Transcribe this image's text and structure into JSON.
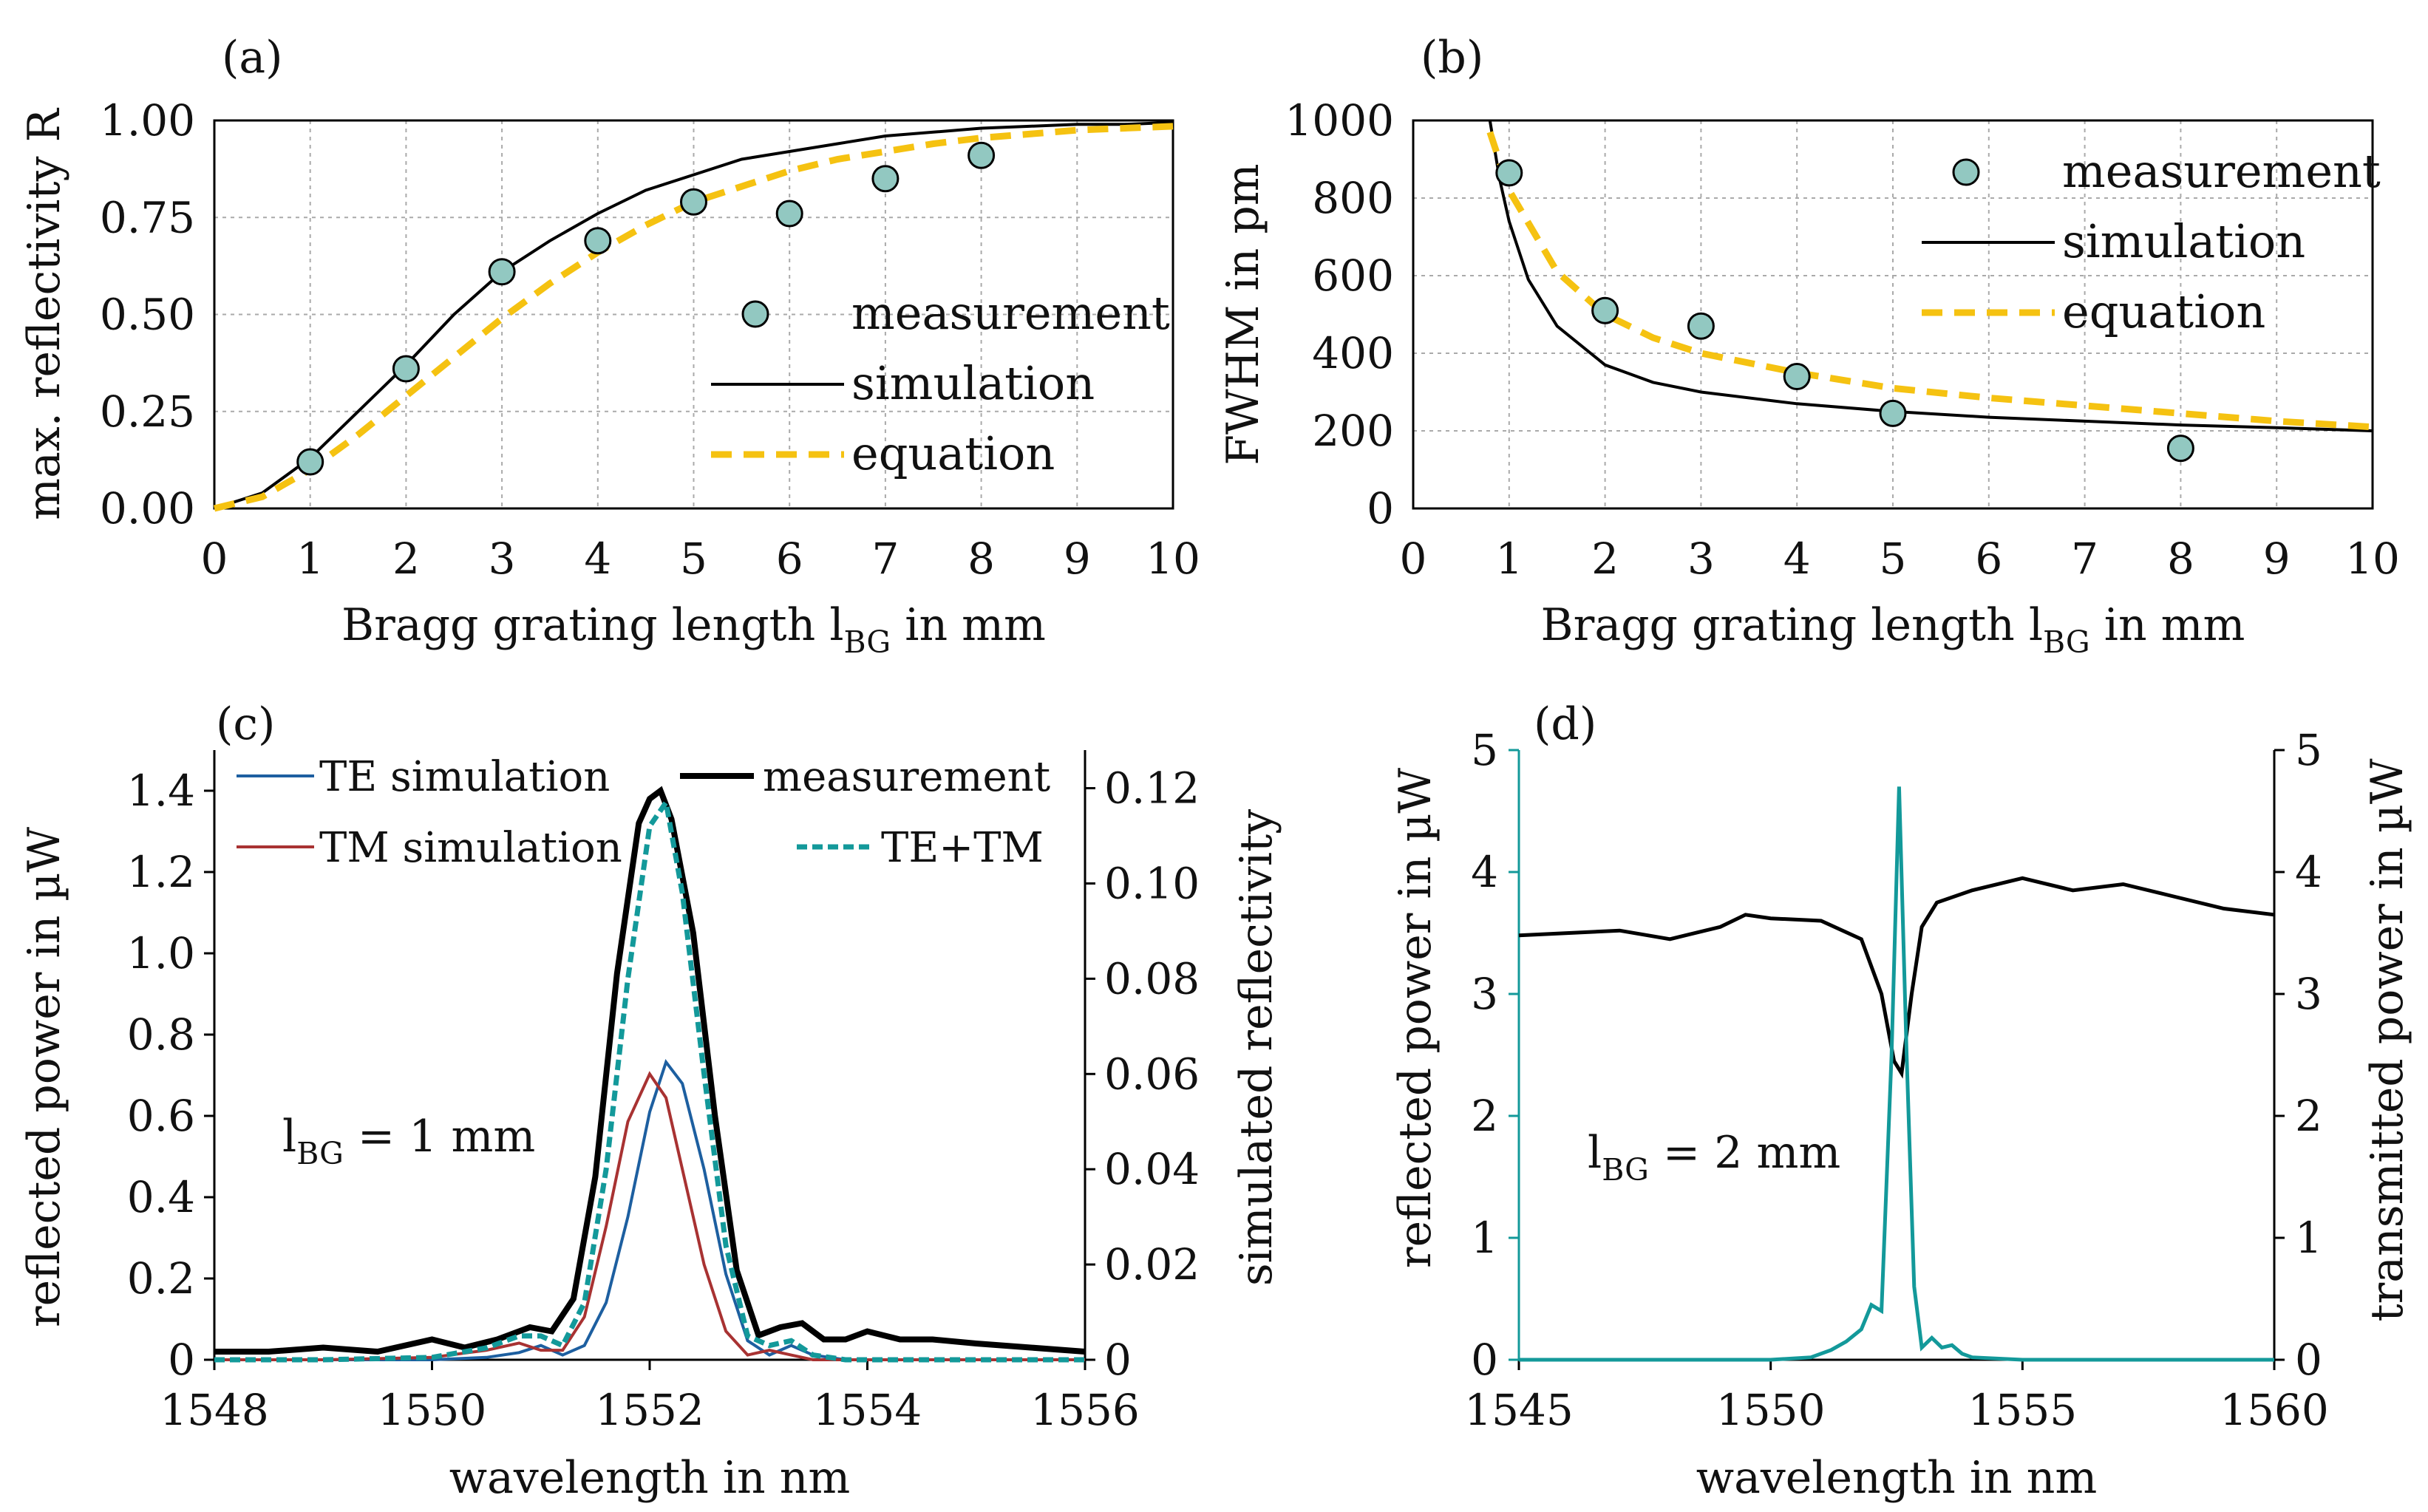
{
  "colors": {
    "measurement_fill": "#92c8c1",
    "simulation": "#000000",
    "equation": "#f5c211",
    "te": "#1d5fa0",
    "tm": "#a83232",
    "tetm": "#13999a",
    "grid": "#aaaaaa"
  },
  "chart_data": [
    {
      "panel": "(a)",
      "type": "scatter",
      "xlabel_main": "Bragg grating length l",
      "xlabel_sub": "BG",
      "xlabel_tail": " in mm",
      "ylabel": "max. reflectivity R",
      "xlim": [
        0,
        10
      ],
      "ylim": [
        0,
        1
      ],
      "xticks": [
        "0",
        "1",
        "2",
        "3",
        "4",
        "5",
        "6",
        "7",
        "8",
        "9",
        "10"
      ],
      "yticks": [
        "0.00",
        "0.25",
        "0.50",
        "0.75",
        "1.00"
      ],
      "grid": true,
      "legend_position": "lower-right",
      "series": [
        {
          "name": "measurement",
          "kind": "marker",
          "x": [
            1,
            2,
            3,
            4,
            5,
            6,
            7,
            8
          ],
          "y": [
            0.12,
            0.36,
            0.61,
            0.69,
            0.79,
            0.76,
            0.85,
            0.91
          ]
        },
        {
          "name": "simulation",
          "kind": "solid",
          "x": [
            0,
            0.5,
            1,
            1.5,
            2,
            2.5,
            3,
            3.5,
            4,
            4.5,
            5,
            5.5,
            6,
            6.5,
            7,
            7.5,
            8,
            8.5,
            9,
            9.5,
            10
          ],
          "y": [
            0,
            0.04,
            0.13,
            0.25,
            0.37,
            0.5,
            0.61,
            0.69,
            0.76,
            0.82,
            0.86,
            0.9,
            0.92,
            0.94,
            0.96,
            0.97,
            0.98,
            0.985,
            0.99,
            0.99,
            0.995
          ]
        },
        {
          "name": "equation",
          "kind": "dashed",
          "x": [
            0,
            0.5,
            1,
            1.5,
            2,
            2.5,
            3,
            3.5,
            4,
            4.5,
            5,
            5.5,
            6,
            6.5,
            7,
            7.5,
            8,
            8.5,
            9,
            9.5,
            10
          ],
          "y": [
            0,
            0.03,
            0.1,
            0.19,
            0.29,
            0.39,
            0.49,
            0.58,
            0.66,
            0.73,
            0.79,
            0.83,
            0.87,
            0.9,
            0.92,
            0.94,
            0.955,
            0.965,
            0.975,
            0.98,
            0.985
          ]
        }
      ]
    },
    {
      "panel": "(b)",
      "type": "scatter",
      "xlabel_main": "Bragg grating length l",
      "xlabel_sub": "BG",
      "xlabel_tail": " in mm",
      "ylabel": "FWHM in pm",
      "xlim": [
        0,
        10
      ],
      "ylim": [
        0,
        1000
      ],
      "xticks": [
        "0",
        "1",
        "2",
        "3",
        "4",
        "5",
        "6",
        "7",
        "8",
        "9",
        "10"
      ],
      "yticks": [
        "0",
        "200",
        "400",
        "600",
        "800",
        "1000"
      ],
      "grid": true,
      "legend_position": "upper-right",
      "series": [
        {
          "name": "measurement",
          "kind": "marker",
          "x": [
            1,
            2,
            3,
            4,
            5,
            8
          ],
          "y": [
            865,
            510,
            470,
            340,
            245,
            155
          ]
        },
        {
          "name": "simulation",
          "kind": "solid",
          "x": [
            0.8,
            0.9,
            1,
            1.2,
            1.5,
            2,
            2.5,
            3,
            4,
            5,
            6,
            7,
            8,
            9,
            10
          ],
          "y": [
            1000,
            850,
            740,
            590,
            470,
            370,
            325,
            300,
            270,
            250,
            235,
            225,
            215,
            208,
            200
          ]
        },
        {
          "name": "equation",
          "kind": "dashed",
          "x": [
            0.8,
            1,
            1.5,
            2,
            2.5,
            3,
            4,
            5,
            6,
            7,
            8,
            9,
            10
          ],
          "y": [
            970,
            820,
            610,
            500,
            440,
            400,
            350,
            310,
            285,
            265,
            245,
            225,
            210
          ]
        }
      ]
    },
    {
      "panel": "(c)",
      "type": "line",
      "xlabel": "wavelength in nm",
      "ylabel_left": "reflected power in µW",
      "ylabel_right": "simulated reflectivity",
      "xlim": [
        1548,
        1556
      ],
      "ylim_left": [
        0,
        1.5
      ],
      "ylim_right": [
        0,
        0.128
      ],
      "xticks": [
        "1548",
        "1550",
        "1552",
        "1554",
        "1556"
      ],
      "yticks_left": [
        "0",
        "0.2",
        "0.4",
        "0.6",
        "0.8",
        "1.0",
        "1.2",
        "1.4"
      ],
      "yticks_right": [
        "0",
        "0.02",
        "0.04",
        "0.06",
        "0.08",
        "0.10",
        "0.12"
      ],
      "annotation_main": "l",
      "annotation_sub": "BG",
      "annotation_tail": " = 1 mm",
      "legend_position": "top",
      "series": [
        {
          "name": "TE simulation",
          "axis": "right",
          "x": [
            1548,
            1549,
            1550,
            1550.5,
            1550.8,
            1551,
            1551.2,
            1551.4,
            1551.6,
            1551.8,
            1552,
            1552.15,
            1552.3,
            1552.5,
            1552.7,
            1552.9,
            1553.1,
            1553.3,
            1553.5,
            1553.8,
            1554.5,
            1556
          ],
          "y": [
            0,
            0,
            0,
            0.0005,
            0.0015,
            0.003,
            0.001,
            0.003,
            0.012,
            0.03,
            0.052,
            0.0625,
            0.058,
            0.04,
            0.018,
            0.004,
            0.001,
            0.003,
            0.001,
            0,
            0,
            0
          ]
        },
        {
          "name": "TM simulation",
          "axis": "right",
          "x": [
            1548,
            1549,
            1550,
            1550.5,
            1550.8,
            1551,
            1551.2,
            1551.4,
            1551.6,
            1551.8,
            1552,
            1552.15,
            1552.3,
            1552.5,
            1552.7,
            1552.9,
            1553.1,
            1553.3,
            1553.5,
            1553.8,
            1554.5,
            1556
          ],
          "y": [
            0,
            0,
            0.0005,
            0.002,
            0.0035,
            0.002,
            0.002,
            0.009,
            0.028,
            0.05,
            0.06,
            0.055,
            0.04,
            0.02,
            0.006,
            0.001,
            0.002,
            0.001,
            0,
            0,
            0,
            0
          ]
        },
        {
          "name": "TE+TM",
          "axis": "right",
          "x": [
            1548,
            1549,
            1550,
            1550.5,
            1550.8,
            1551,
            1551.2,
            1551.4,
            1551.6,
            1551.8,
            1552,
            1552.15,
            1552.3,
            1552.5,
            1552.7,
            1552.9,
            1553.1,
            1553.3,
            1553.5,
            1553.8,
            1554.5,
            1556
          ],
          "y": [
            0,
            0,
            0.0005,
            0.0025,
            0.005,
            0.005,
            0.003,
            0.012,
            0.04,
            0.08,
            0.112,
            0.117,
            0.098,
            0.06,
            0.024,
            0.005,
            0.003,
            0.004,
            0.001,
            0,
            0,
            0
          ]
        },
        {
          "name": "measurement",
          "axis": "left",
          "x": [
            1548,
            1548.5,
            1549,
            1549.5,
            1550,
            1550.3,
            1550.6,
            1550.9,
            1551.1,
            1551.3,
            1551.5,
            1551.7,
            1551.9,
            1552,
            1552.1,
            1552.2,
            1552.4,
            1552.6,
            1552.8,
            1553,
            1553.2,
            1553.4,
            1553.6,
            1553.8,
            1554,
            1554.3,
            1554.6,
            1555,
            1555.5,
            1556
          ],
          "y": [
            0.02,
            0.02,
            0.03,
            0.02,
            0.05,
            0.03,
            0.05,
            0.08,
            0.07,
            0.15,
            0.45,
            0.95,
            1.32,
            1.38,
            1.4,
            1.33,
            1.05,
            0.6,
            0.22,
            0.06,
            0.08,
            0.09,
            0.05,
            0.05,
            0.07,
            0.05,
            0.05,
            0.04,
            0.03,
            0.02
          ]
        }
      ]
    },
    {
      "panel": "(d)",
      "type": "line",
      "xlabel": "wavelength in nm",
      "ylabel_left": "reflected power in µW",
      "ylabel_right": "transmitted power in µW",
      "xlim": [
        1545,
        1560
      ],
      "ylim_left": [
        0,
        5
      ],
      "ylim_right": [
        0,
        5
      ],
      "xticks": [
        "1545",
        "1550",
        "1555",
        "1560"
      ],
      "yticks_left": [
        "0",
        "1",
        "2",
        "3",
        "4",
        "5"
      ],
      "yticks_right": [
        "0",
        "1",
        "2",
        "3",
        "4",
        "5"
      ],
      "annotation_main": "l",
      "annotation_sub": "BG",
      "annotation_tail": " = 2 mm",
      "series": [
        {
          "name": "reflected",
          "axis": "left",
          "x": [
            1545,
            1548,
            1550,
            1550.8,
            1551.2,
            1551.5,
            1551.8,
            1552,
            1552.2,
            1552.4,
            1552.55,
            1552.7,
            1552.85,
            1553,
            1553.2,
            1553.4,
            1553.6,
            1553.8,
            1554,
            1555,
            1560
          ],
          "y": [
            0,
            0,
            0,
            0.02,
            0.08,
            0.15,
            0.25,
            0.45,
            0.4,
            2.5,
            4.7,
            2.5,
            0.6,
            0.1,
            0.18,
            0.1,
            0.12,
            0.05,
            0.02,
            0,
            0
          ]
        },
        {
          "name": "transmitted",
          "axis": "right",
          "x": [
            1545,
            1546,
            1547,
            1548,
            1549,
            1549.5,
            1550,
            1551,
            1551.8,
            1552.2,
            1552.45,
            1552.6,
            1552.8,
            1553,
            1553.3,
            1554,
            1555,
            1556,
            1557,
            1558,
            1559,
            1560
          ],
          "y": [
            3.48,
            3.5,
            3.52,
            3.45,
            3.55,
            3.65,
            3.62,
            3.6,
            3.45,
            3.0,
            2.45,
            2.35,
            3.0,
            3.55,
            3.75,
            3.85,
            3.95,
            3.85,
            3.9,
            3.8,
            3.7,
            3.65
          ]
        }
      ]
    }
  ]
}
